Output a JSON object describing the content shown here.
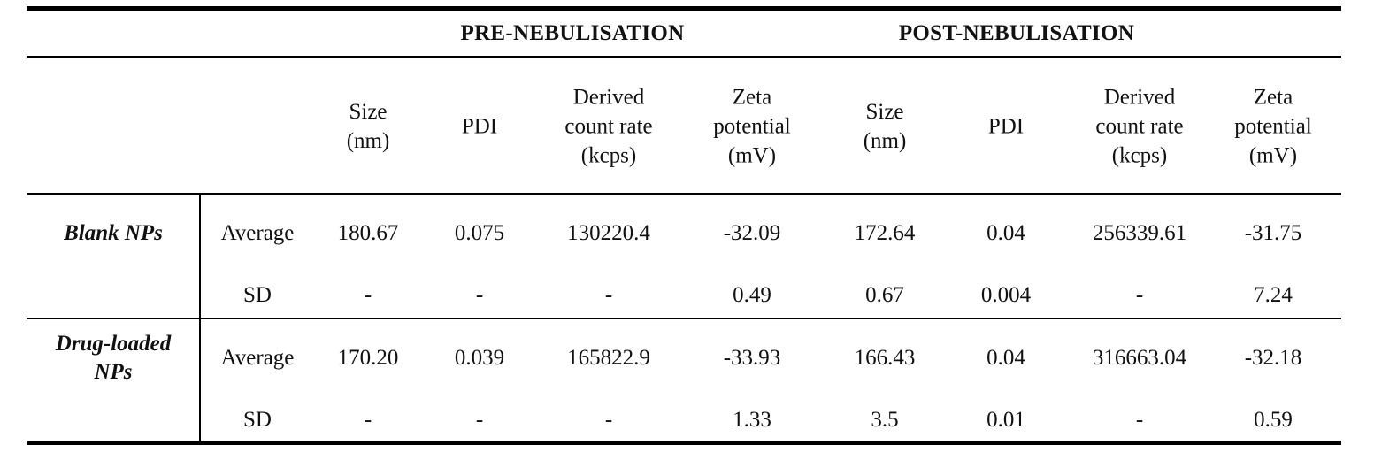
{
  "table": {
    "group_headers": [
      "PRE-NEBULISATION",
      "POST-NEBULISATION"
    ],
    "column_headers": [
      "Size\n(nm)",
      "PDI",
      "Derived\ncount rate\n(kcps)",
      "Zeta\npotential\n(mV)",
      "Size\n(nm)",
      "PDI",
      "Derived\ncount rate\n(kcps)",
      "Zeta\npotential\n(mV)"
    ],
    "groups": [
      {
        "label": "Blank NPs",
        "rows": [
          {
            "stat": "Average",
            "values": [
              "180.67",
              "0.075",
              "130220.4",
              "-32.09",
              "172.64",
              "0.04",
              "256339.61",
              "-31.75"
            ]
          },
          {
            "stat": "SD",
            "values": [
              "-",
              "-",
              "-",
              "0.49",
              "0.67",
              "0.004",
              "-",
              "7.24"
            ]
          }
        ]
      },
      {
        "label": "Drug-loaded\nNPs",
        "rows": [
          {
            "stat": "Average",
            "values": [
              "170.20",
              "0.039",
              "165822.9",
              "-33.93",
              "166.43",
              "0.04",
              "316663.04",
              "-32.18"
            ]
          },
          {
            "stat": "SD",
            "values": [
              "-",
              "-",
              "-",
              "1.33",
              "3.5",
              "0.01",
              "-",
              "0.59"
            ]
          }
        ]
      }
    ]
  }
}
